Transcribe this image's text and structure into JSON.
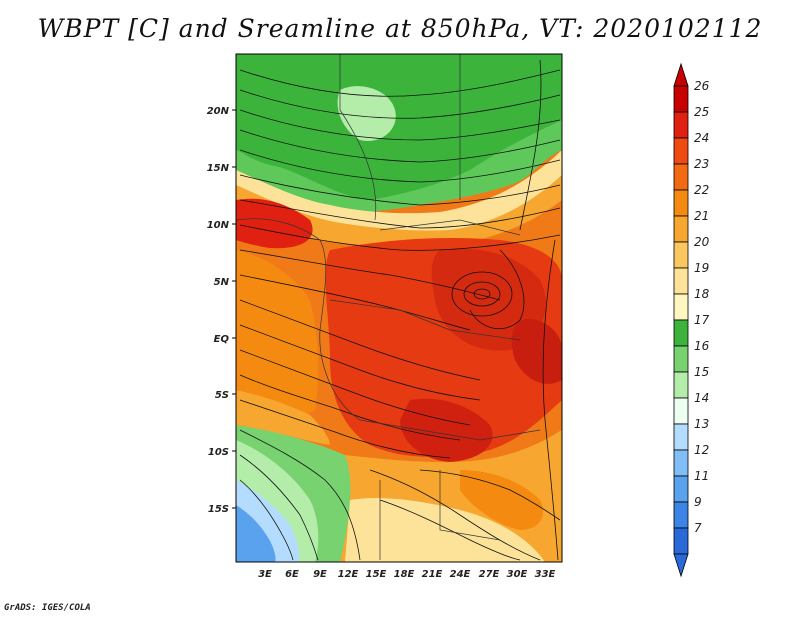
{
  "title": "WBPT [C] and Sreamline at 850hPa, VT: 2020102112",
  "credit": "GrADS: IGES/COLA",
  "lat_labels": [
    "20N",
    "15N",
    "10N",
    "5N",
    "EQ",
    "5S",
    "10S",
    "15S"
  ],
  "lon_labels": [
    "3E",
    "6E",
    "9E",
    "12E",
    "15E",
    "18E",
    "21E",
    "24E",
    "27E",
    "30E",
    "33E"
  ],
  "colorbar": {
    "labels": [
      "26",
      "25",
      "24",
      "23",
      "22",
      "21",
      "20",
      "19",
      "18",
      "17",
      "16",
      "15",
      "14",
      "13",
      "12",
      "11",
      "9",
      "7"
    ],
    "colors": [
      "#c80000",
      "#e02010",
      "#ee4a12",
      "#f26a12",
      "#f48a10",
      "#f7a630",
      "#fbc860",
      "#fde39a",
      "#fff6c0",
      "#3cb43c",
      "#78d270",
      "#b4ecaa",
      "#ecfff0",
      "#b4dcff",
      "#82bef6",
      "#5aa2ee",
      "#3c84e6",
      "#2a6ad8"
    ]
  }
}
